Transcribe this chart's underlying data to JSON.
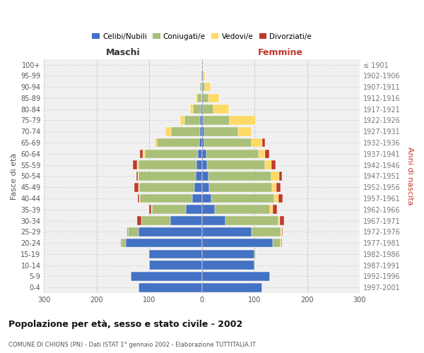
{
  "age_groups": [
    "0-4",
    "5-9",
    "10-14",
    "15-19",
    "20-24",
    "25-29",
    "30-34",
    "35-39",
    "40-44",
    "45-49",
    "50-54",
    "55-59",
    "60-64",
    "65-69",
    "70-74",
    "75-79",
    "80-84",
    "85-89",
    "90-94",
    "95-99",
    "100+"
  ],
  "birth_years": [
    "1997-2001",
    "1992-1996",
    "1987-1991",
    "1982-1986",
    "1977-1981",
    "1972-1976",
    "1967-1971",
    "1962-1966",
    "1957-1961",
    "1952-1956",
    "1947-1951",
    "1942-1946",
    "1937-1941",
    "1932-1936",
    "1927-1931",
    "1922-1926",
    "1917-1921",
    "1912-1916",
    "1907-1911",
    "1902-1906",
    "≤ 1901"
  ],
  "males": {
    "celibi": [
      120,
      135,
      100,
      100,
      145,
      120,
      60,
      30,
      18,
      14,
      12,
      10,
      8,
      5,
      4,
      3,
      2,
      1,
      0,
      1,
      1
    ],
    "coniugati": [
      0,
      0,
      1,
      2,
      8,
      20,
      55,
      65,
      100,
      105,
      108,
      110,
      100,
      80,
      55,
      30,
      15,
      8,
      3,
      1,
      0
    ],
    "vedovi": [
      0,
      0,
      0,
      0,
      0,
      0,
      0,
      1,
      1,
      1,
      2,
      3,
      5,
      5,
      10,
      8,
      5,
      2,
      1,
      0,
      0
    ],
    "divorziati": [
      0,
      0,
      0,
      0,
      1,
      2,
      8,
      5,
      3,
      8,
      2,
      8,
      5,
      0,
      0,
      0,
      0,
      0,
      0,
      0,
      0
    ]
  },
  "females": {
    "nubili": [
      115,
      130,
      100,
      100,
      135,
      95,
      45,
      25,
      18,
      14,
      12,
      10,
      8,
      5,
      4,
      3,
      2,
      1,
      1,
      1,
      1
    ],
    "coniugate": [
      0,
      0,
      1,
      2,
      15,
      55,
      100,
      105,
      120,
      120,
      120,
      110,
      100,
      90,
      65,
      50,
      20,
      12,
      5,
      2,
      0
    ],
    "vedove": [
      0,
      0,
      0,
      0,
      1,
      2,
      3,
      5,
      8,
      8,
      15,
      12,
      12,
      20,
      25,
      50,
      30,
      20,
      10,
      3,
      1
    ],
    "divorziate": [
      0,
      0,
      0,
      0,
      1,
      2,
      8,
      8,
      8,
      8,
      5,
      8,
      8,
      5,
      0,
      0,
      0,
      0,
      0,
      0,
      0
    ]
  },
  "colors": {
    "celibi": "#4472C4",
    "coniugati": "#AABF78",
    "vedovi": "#FFD966",
    "divorziati": "#C0392B"
  },
  "xlim": 300,
  "title": "Popolazione per età, sesso e stato civile - 2002",
  "subtitle": "COMUNE DI CHIONS (PN) - Dati ISTAT 1° gennaio 2002 - Elaborazione TUTTITALIA.IT",
  "ylabel_left": "Fasce di età",
  "ylabel_right": "Anni di nascita",
  "xlabel_left": "Maschi",
  "xlabel_right": "Femmine",
  "legend_labels": [
    "Celibi/Nubili",
    "Coniugati/e",
    "Vedovi/e",
    "Divorziati/e"
  ],
  "background_color": "#FFFFFF",
  "grid_color": "#CCCCCC",
  "plot_bg": "#F0F0F0"
}
